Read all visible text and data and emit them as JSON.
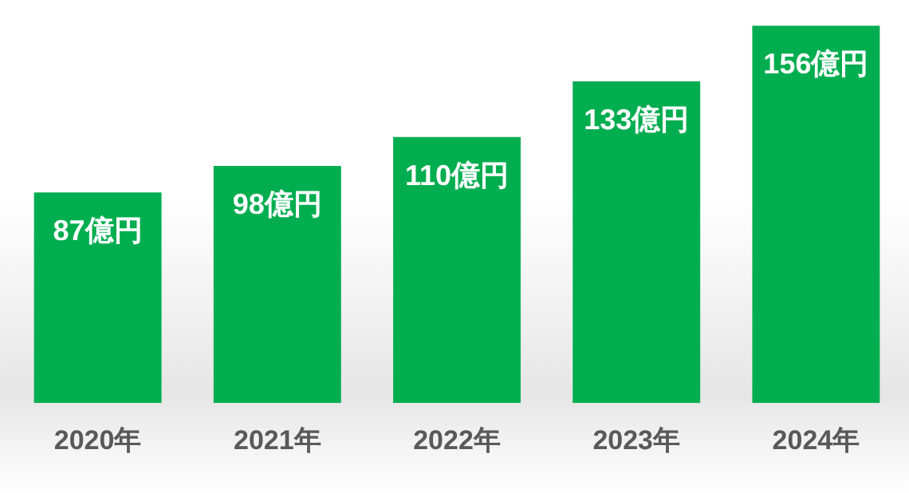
{
  "chart_data": {
    "type": "bar",
    "categories": [
      "2020年",
      "2021年",
      "2022年",
      "2023年",
      "2024年"
    ],
    "values": [
      87,
      98,
      110,
      133,
      156
    ],
    "value_labels": [
      "87億円",
      "98億円",
      "110億円",
      "133億円",
      "156億円"
    ],
    "color": "#00ad4f",
    "tick_labels": "x",
    "grid": false,
    "legend": false
  }
}
